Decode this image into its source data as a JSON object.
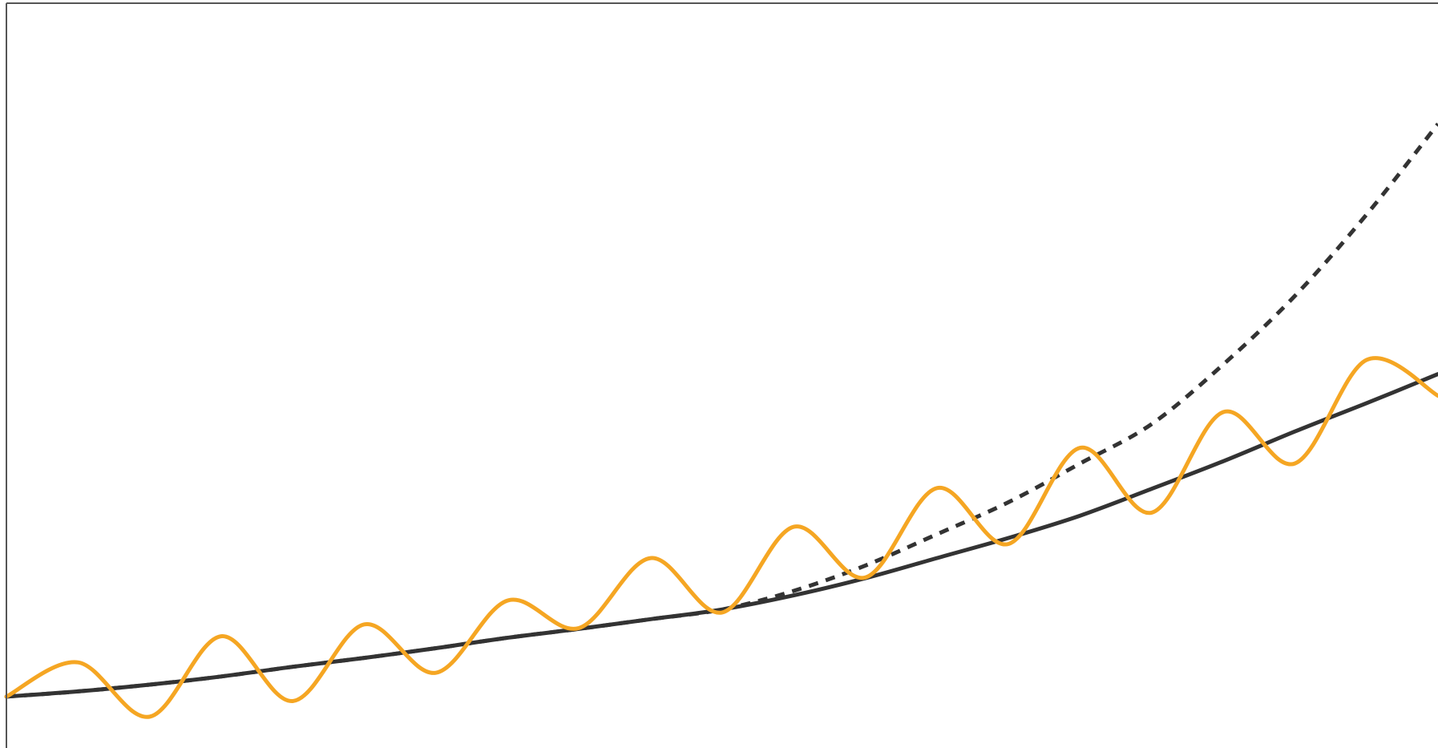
{
  "chart_data": {
    "type": "line",
    "title": "",
    "xlabel": "",
    "ylabel": "",
    "grid": false,
    "legend": "none",
    "xlim": [
      0,
      1
    ],
    "ylim": [
      0,
      1
    ],
    "x": [
      0.0,
      0.05,
      0.1,
      0.15,
      0.2,
      0.25,
      0.3,
      0.35,
      0.4,
      0.45,
      0.5,
      0.55,
      0.6,
      0.65,
      0.7,
      0.75,
      0.8,
      0.85,
      0.9,
      0.95,
      1.0
    ],
    "series": [
      {
        "values": [
          0.069,
          0.076,
          0.085,
          0.096,
          0.109,
          0.121,
          0.134,
          0.148,
          0.16,
          0.173,
          0.186,
          0.205,
          0.228,
          0.255,
          0.282,
          0.312,
          0.348,
          0.385,
          0.425,
          0.463,
          0.502
        ],
        "color": "#333333",
        "style": "solid"
      },
      {
        "values": [
          0.069,
          0.076,
          0.085,
          0.096,
          0.109,
          0.121,
          0.134,
          0.148,
          0.16,
          0.173,
          0.186,
          0.211,
          0.245,
          0.287,
          0.33,
          0.382,
          0.435,
          0.515,
          0.607,
          0.716,
          0.838
        ],
        "color": "#333333",
        "style": "dashed"
      },
      {
        "values": [
          0.069,
          0.115,
          0.042,
          0.15,
          0.063,
          0.166,
          0.101,
          0.198,
          0.161,
          0.255,
          0.182,
          0.297,
          0.229,
          0.349,
          0.274,
          0.403,
          0.316,
          0.451,
          0.382,
          0.521,
          0.473
        ],
        "color": "#F5A623",
        "style": "solid"
      }
    ]
  }
}
